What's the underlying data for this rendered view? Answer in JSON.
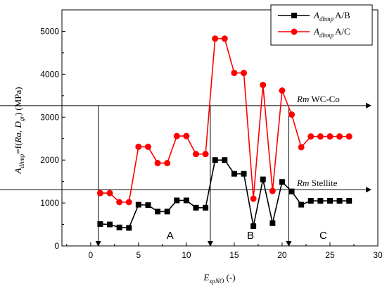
{
  "chart_data": {
    "type": "line",
    "xlabel": {
      "main": "E",
      "sub": "xpNO",
      "suffix": " (-)"
    },
    "ylabel": {
      "main": "A",
      "sub1": "dhmp",
      "mid": "=f(",
      "italic_ra": "Ra",
      "sep": ", ",
      "d": "D",
      "sub2": "gr",
      "suffix": ")  (MPa)"
    },
    "xlim": [
      -3,
      30
    ],
    "ylim": [
      0,
      5500
    ],
    "x_ticks": [
      0,
      5,
      10,
      15,
      20,
      25,
      30
    ],
    "y_ticks": [
      0,
      1000,
      2000,
      3000,
      4000,
      5000
    ],
    "x_tick_labels": [
      "0",
      "5",
      "10",
      "15",
      "20",
      "25",
      "30"
    ],
    "y_tick_labels": [
      "0",
      "1000",
      "2000",
      "3000",
      "4000",
      "5000"
    ],
    "x": [
      1,
      2,
      3,
      4,
      5,
      6,
      7,
      8,
      9,
      10,
      11,
      12,
      13,
      14,
      15,
      16,
      17,
      18,
      19,
      20,
      21,
      22,
      23,
      24,
      25,
      26,
      27
    ],
    "series": [
      {
        "name": "A/B",
        "legend_main": "A",
        "legend_sub": "dhmp",
        "legend_suffix": "A/B",
        "color": "#000000",
        "marker": "square",
        "values": [
          510,
          500,
          430,
          420,
          960,
          950,
          800,
          800,
          1060,
          1060,
          890,
          890,
          2000,
          2000,
          1680,
          1680,
          460,
          1550,
          530,
          1490,
          1270,
          960,
          1050,
          1050,
          1050,
          1050,
          1050
        ]
      },
      {
        "name": "A/C",
        "legend_main": "A",
        "legend_sub": "dhmp",
        "legend_suffix": "A/C",
        "color": "#ff0000",
        "marker": "circle",
        "values": [
          1230,
          1230,
          1020,
          1020,
          2310,
          2310,
          1930,
          1930,
          2560,
          2560,
          2140,
          2140,
          4830,
          4830,
          4030,
          4030,
          1100,
          3750,
          1280,
          3620,
          3060,
          2300,
          2550,
          2550,
          2550,
          2550,
          2550
        ]
      }
    ],
    "reference_lines": [
      {
        "y": 3270,
        "label_italic": "Rm",
        "label_text": " WC-Co"
      },
      {
        "y": 1310,
        "label_italic": "Rm",
        "label_text": " Stellite"
      }
    ],
    "region_dividers": [
      {
        "x": 0.8,
        "y_top": 3270
      },
      {
        "x": 12.5,
        "y_top": 3270
      },
      {
        "x": 20.7,
        "y_top": 3270
      }
    ],
    "regions": [
      {
        "label": "A",
        "x": 8.3,
        "y": 250
      },
      {
        "label": "B",
        "x": 16.7,
        "y": 250
      },
      {
        "label": "C",
        "x": 24.3,
        "y": 250
      }
    ],
    "legend_position": "top-right",
    "grid": false
  }
}
